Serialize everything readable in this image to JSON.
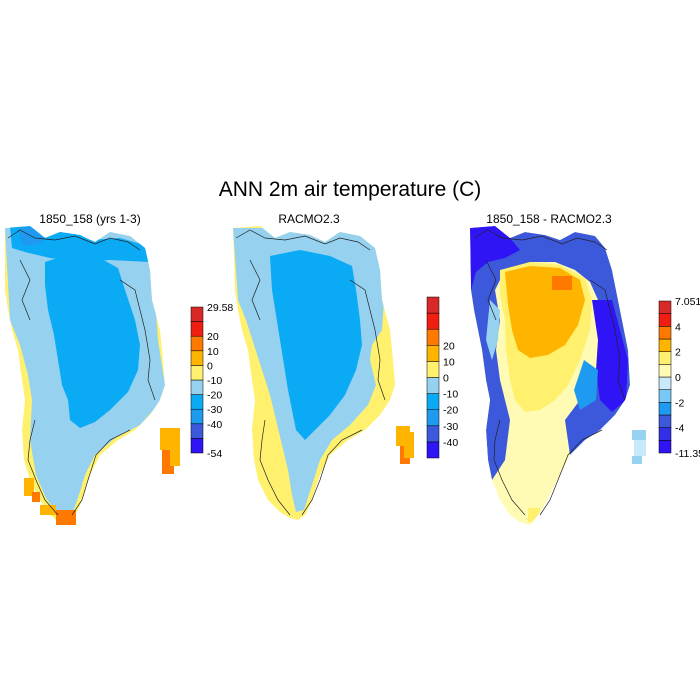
{
  "chart_data": {
    "type": "heatmap",
    "title": "ANN 2m air temperature (C)",
    "panels": [
      {
        "title": "1850_158 (yrs 1-3)",
        "colorbar": {
          "colors": [
            "#2f14f5",
            "#3c59dc",
            "#1e9bf0",
            "#0aaaf5",
            "#96d2f0",
            "#fff06e",
            "#ffb400",
            "#ff7800",
            "#f01e10",
            "#d72a28"
          ],
          "labels": [
            "-54",
            "-40",
            "-30",
            "-20",
            "-10",
            "0",
            "10",
            "20",
            "29.58"
          ]
        }
      },
      {
        "title": "RACMO2.3",
        "colorbar": {
          "colors": [
            "#2f14f5",
            "#3c59dc",
            "#1e9bf0",
            "#0aaaf5",
            "#96d2f0",
            "#fff06e",
            "#ffb400",
            "#ff7800",
            "#f01e10",
            "#d72a28"
          ],
          "labels": [
            "-40",
            "-30",
            "-20",
            "-10",
            "0",
            "10",
            "20"
          ]
        }
      },
      {
        "title": "1850_158 - RACMO2.3",
        "colorbar": {
          "colors": [
            "#2f14f5",
            "#3230e6",
            "#3c59dc",
            "#1e9bf0",
            "#78c8f5",
            "#c8eafa",
            "#fffab4",
            "#fff06e",
            "#ffb400",
            "#ff7800",
            "#f01e10",
            "#d72a28"
          ],
          "labels": [
            "-11.35",
            "-4",
            "-2",
            "0",
            "2",
            "4",
            "7.051"
          ]
        }
      }
    ]
  }
}
